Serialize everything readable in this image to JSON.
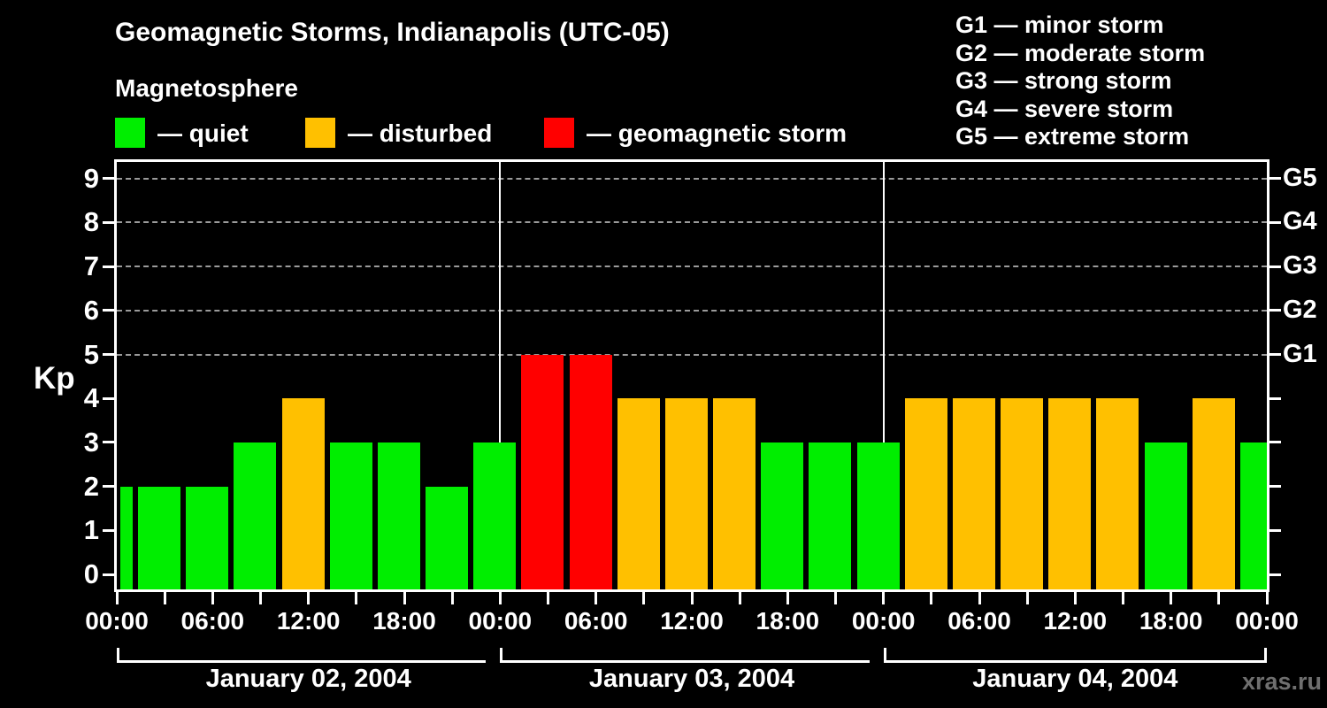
{
  "title": "Geomagnetic Storms, Indianapolis (UTC-05)",
  "subtitle": "Magnetosphere",
  "kp_axis_label": "Kp",
  "watermark": "xras.ru",
  "colors": {
    "background": "#000000",
    "text": "#ffffff",
    "grid": "#9a9a9a",
    "watermark": "#6f6f6f",
    "quiet": "#00ee00",
    "disturbed": "#ffc000",
    "storm": "#ff0000"
  },
  "legend": [
    {
      "state": "quiet",
      "label": "— quiet"
    },
    {
      "state": "disturbed",
      "label": "— disturbed"
    },
    {
      "state": "storm",
      "label": "— geomagnetic storm"
    }
  ],
  "storm_scale": [
    {
      "code": "G1",
      "desc": "minor storm"
    },
    {
      "code": "G2",
      "desc": "moderate storm"
    },
    {
      "code": "G3",
      "desc": "strong storm"
    },
    {
      "code": "G4",
      "desc": "severe storm"
    },
    {
      "code": "G5",
      "desc": "extreme storm"
    }
  ],
  "chart_data": {
    "type": "bar",
    "title": "Geomagnetic Storms, Indianapolis (UTC-05)",
    "ylabel": "Kp",
    "ylim": [
      0,
      9
    ],
    "y_ticks": [
      0,
      1,
      2,
      3,
      4,
      5,
      6,
      7,
      8,
      9
    ],
    "grid_levels_kp": [
      5,
      6,
      7,
      8,
      9
    ],
    "g_scale": [
      {
        "label": "G1",
        "kp": 5
      },
      {
        "label": "G2",
        "kp": 6
      },
      {
        "label": "G3",
        "kp": 7
      },
      {
        "label": "G4",
        "kp": 8
      },
      {
        "label": "G5",
        "kp": 9
      }
    ],
    "x_tick_step_hours": 3,
    "x_label_step_hours": 6,
    "x_tick_labels": [
      "00:00",
      "06:00",
      "12:00",
      "18:00",
      "00:00",
      "06:00",
      "12:00",
      "18:00",
      "00:00",
      "06:00",
      "12:00",
      "18:00",
      "00:00"
    ],
    "days": [
      {
        "date": "January 02, 2004",
        "start_hour": 0,
        "end_hour": 24
      },
      {
        "date": "January 03, 2004",
        "start_hour": 24,
        "end_hour": 48
      },
      {
        "date": "January 04, 2004",
        "start_hour": 48,
        "end_hour": 72
      }
    ],
    "bars": [
      {
        "kp": 2,
        "state": "quiet",
        "partial": "start"
      },
      {
        "kp": 2,
        "state": "quiet"
      },
      {
        "kp": 2,
        "state": "quiet"
      },
      {
        "kp": 3,
        "state": "quiet"
      },
      {
        "kp": 4,
        "state": "disturbed"
      },
      {
        "kp": 3,
        "state": "quiet"
      },
      {
        "kp": 3,
        "state": "quiet"
      },
      {
        "kp": 2,
        "state": "quiet"
      },
      {
        "kp": 3,
        "state": "quiet"
      },
      {
        "kp": 5,
        "state": "storm"
      },
      {
        "kp": 5,
        "state": "storm"
      },
      {
        "kp": 4,
        "state": "disturbed"
      },
      {
        "kp": 4,
        "state": "disturbed"
      },
      {
        "kp": 4,
        "state": "disturbed"
      },
      {
        "kp": 3,
        "state": "quiet"
      },
      {
        "kp": 3,
        "state": "quiet"
      },
      {
        "kp": 3,
        "state": "quiet"
      },
      {
        "kp": 4,
        "state": "disturbed"
      },
      {
        "kp": 4,
        "state": "disturbed"
      },
      {
        "kp": 4,
        "state": "disturbed"
      },
      {
        "kp": 4,
        "state": "disturbed"
      },
      {
        "kp": 4,
        "state": "disturbed"
      },
      {
        "kp": 3,
        "state": "quiet"
      },
      {
        "kp": 4,
        "state": "disturbed"
      },
      {
        "kp": 3,
        "state": "quiet",
        "partial": "end"
      }
    ]
  }
}
